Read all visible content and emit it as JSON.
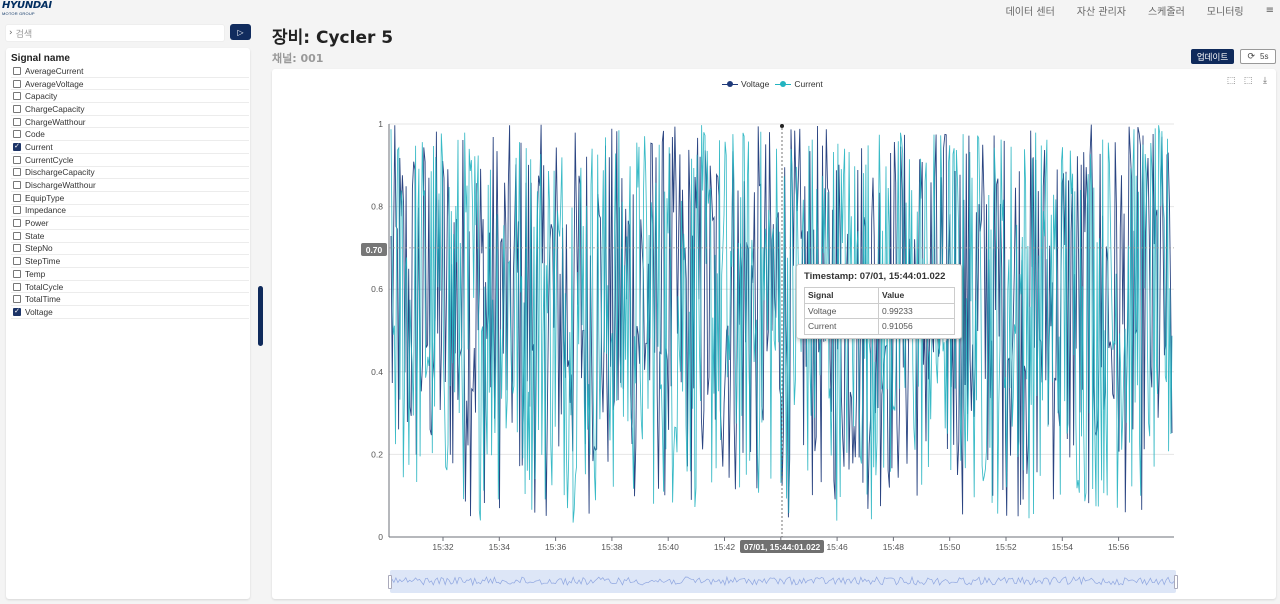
{
  "brand": {
    "name": "HYUNDAI",
    "sub": "MOTOR GROUP"
  },
  "nav": {
    "items": [
      "데이터 센터",
      "자산 관리자",
      "스케줄러",
      "모니터링"
    ],
    "menu_icon": "≡"
  },
  "search": {
    "placeholder": "검색",
    "run_icon": "▷"
  },
  "sidebar": {
    "header": "Signal name",
    "signals": [
      {
        "label": "AverageCurrent",
        "checked": false
      },
      {
        "label": "AverageVoltage",
        "checked": false
      },
      {
        "label": "Capacity",
        "checked": false
      },
      {
        "label": "ChargeCapacity",
        "checked": false
      },
      {
        "label": "ChargeWatthour",
        "checked": false
      },
      {
        "label": "Code",
        "checked": false
      },
      {
        "label": "Current",
        "checked": true
      },
      {
        "label": "CurrentCycle",
        "checked": false
      },
      {
        "label": "DischargeCapacity",
        "checked": false
      },
      {
        "label": "DischargeWatthour",
        "checked": false
      },
      {
        "label": "EquipType",
        "checked": false
      },
      {
        "label": "Impedance",
        "checked": false
      },
      {
        "label": "Power",
        "checked": false
      },
      {
        "label": "State",
        "checked": false
      },
      {
        "label": "StepNo",
        "checked": false
      },
      {
        "label": "StepTime",
        "checked": false
      },
      {
        "label": "Temp",
        "checked": false
      },
      {
        "label": "TotalCycle",
        "checked": false
      },
      {
        "label": "TotalTime",
        "checked": false
      },
      {
        "label": "Voltage",
        "checked": true
      }
    ]
  },
  "main": {
    "title": "장비: Cycler 5",
    "subtitle": "채널: 001",
    "update_label": "업데이트",
    "refresh_label": "5s",
    "refresh_icon": "⟳"
  },
  "toolbox": {
    "icons": [
      "zoom-icon",
      "zoom-reset-icon",
      "download-icon"
    ]
  },
  "chart_data": {
    "type": "line",
    "series": [
      {
        "name": "Voltage",
        "color": "#1f3a7a"
      },
      {
        "name": "Current",
        "color": "#22b3c0"
      }
    ],
    "x_ticks": [
      "15:32",
      "15:34",
      "15:36",
      "15:38",
      "15:40",
      "15:42",
      "15:44",
      "15:46",
      "15:48",
      "15:50",
      "15:52",
      "15:54",
      "15:56"
    ],
    "y_ticks": [
      "0",
      "0.2",
      "0.4",
      "0.6",
      "0.8",
      "1"
    ],
    "ylim": [
      0,
      1
    ],
    "note_values": "Both series oscillate randomly between ~0.05 and 1 across the full time range",
    "crosshair_y": "0.70",
    "crosshair_x": "07/01, 15:44:01.022",
    "tooltip": {
      "title": "Timestamp: 07/01, 15:44:01.022",
      "columns": [
        "Signal",
        "Value"
      ],
      "rows": [
        [
          "Voltage",
          "0.99233"
        ],
        [
          "Current",
          "0.91056"
        ]
      ]
    }
  }
}
